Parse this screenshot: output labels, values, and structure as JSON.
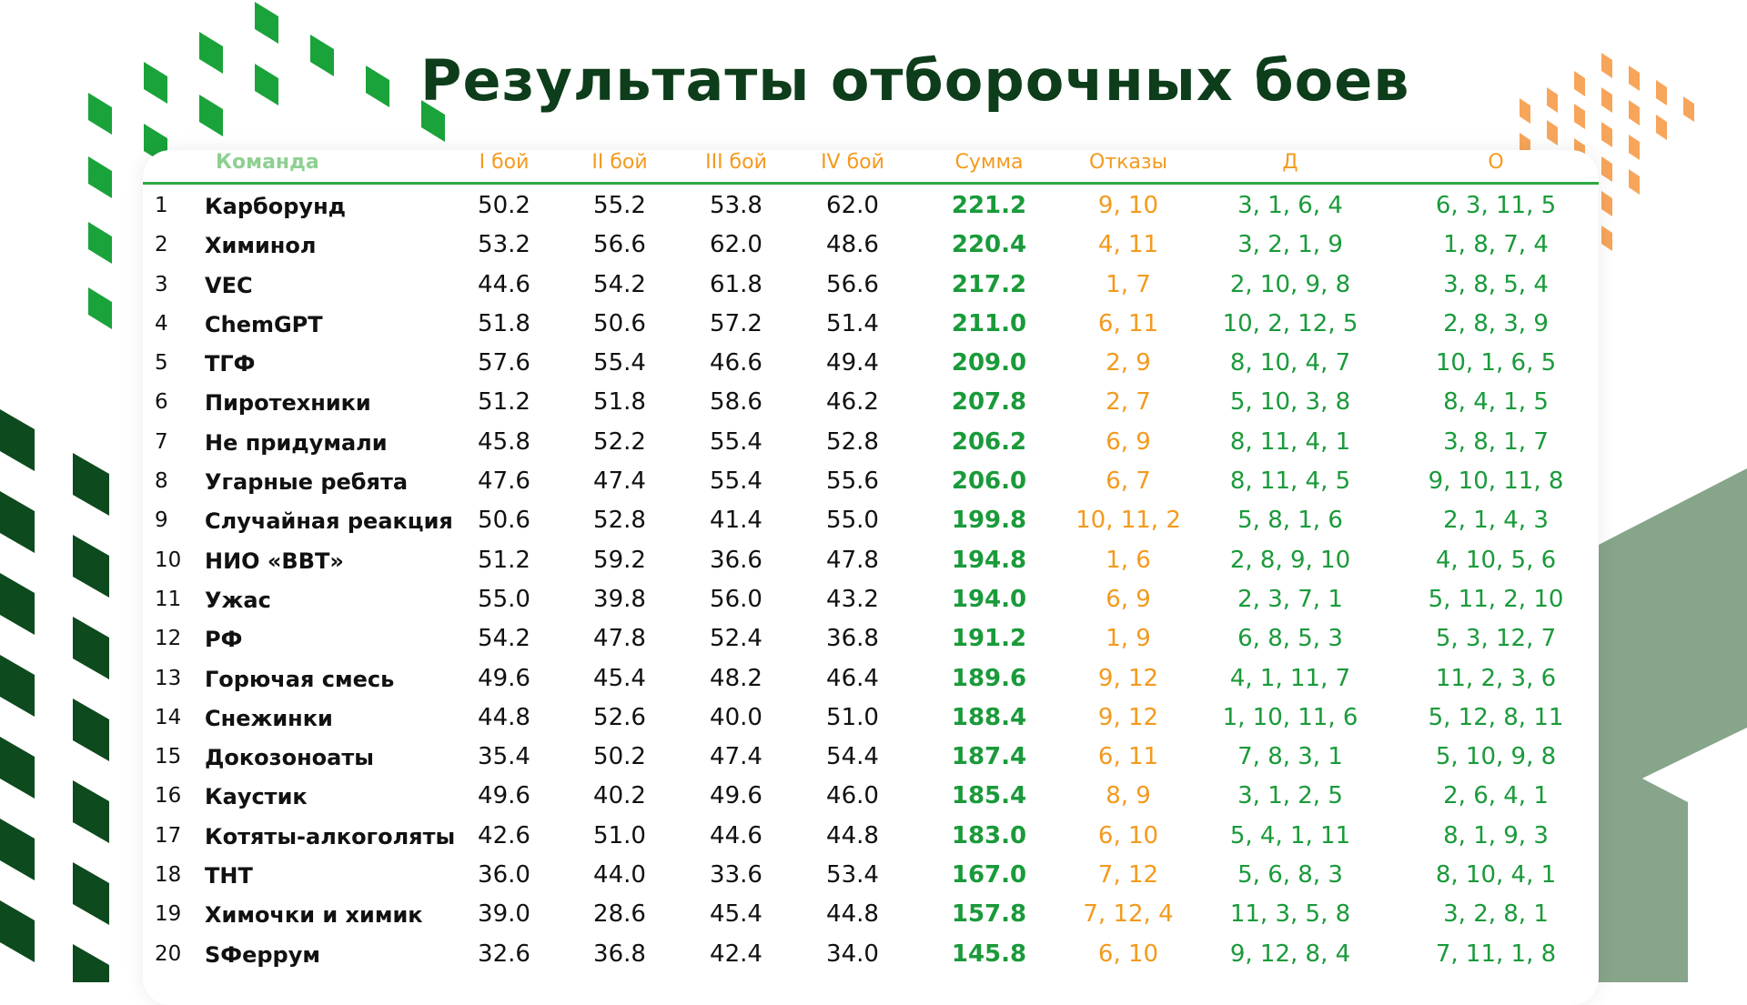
{
  "title": "Результаты отборочных боев",
  "colors": {
    "green_dark": "#0d4a1d",
    "green": "#1a9a3a",
    "orange": "#f39a1e",
    "hex_gray": "#8aa88c"
  },
  "table": {
    "headers": [
      "Команда",
      "I бой",
      "II бой",
      "III бой",
      "IV бой",
      "Сумма",
      "Отказы",
      "Д",
      "О"
    ],
    "rows": [
      {
        "num": "1",
        "team": "Карборунд",
        "b1": "50.2",
        "b2": "55.2",
        "b3": "53.8",
        "b4": "62.0",
        "sum": "221.2",
        "ref": "9, 10",
        "d": "3, 1, 6, 4",
        "o": "6, 3, 11, 5"
      },
      {
        "num": "2",
        "team": "Химинол",
        "b1": "53.2",
        "b2": "56.6",
        "b3": "62.0",
        "b4": "48.6",
        "sum": "220.4",
        "ref": "4, 11",
        "d": "3, 2, 1, 9",
        "o": "1, 8, 7, 4"
      },
      {
        "num": "3",
        "team": "VEC",
        "b1": "44.6",
        "b2": "54.2",
        "b3": "61.8",
        "b4": "56.6",
        "sum": "217.2",
        "ref": "1, 7",
        "d": "2, 10, 9, 8",
        "o": "3, 8, 5, 4"
      },
      {
        "num": "4",
        "team": "ChemGPT",
        "b1": "51.8",
        "b2": "50.6",
        "b3": "57.2",
        "b4": "51.4",
        "sum": "211.0",
        "ref": "6, 11",
        "d": "10, 2, 12, 5",
        "o": "2, 8, 3, 9"
      },
      {
        "num": "5",
        "team": "ТГФ",
        "b1": "57.6",
        "b2": "55.4",
        "b3": "46.6",
        "b4": "49.4",
        "sum": "209.0",
        "ref": "2, 9",
        "d": "8, 10, 4, 7",
        "o": "10, 1, 6, 5"
      },
      {
        "num": "6",
        "team": "Пиротехники",
        "b1": "51.2",
        "b2": "51.8",
        "b3": "58.6",
        "b4": "46.2",
        "sum": "207.8",
        "ref": "2, 7",
        "d": "5, 10, 3, 8",
        "o": "8, 4, 1, 5"
      },
      {
        "num": "7",
        "team": "Не придумали",
        "b1": "45.8",
        "b2": "52.2",
        "b3": "55.4",
        "b4": "52.8",
        "sum": "206.2",
        "ref": "6, 9",
        "d": "8, 11, 4, 1",
        "o": "3, 8, 1, 7"
      },
      {
        "num": "8",
        "team": "Угарные ребята",
        "b1": "47.6",
        "b2": "47.4",
        "b3": "55.4",
        "b4": "55.6",
        "sum": "206.0",
        "ref": "6, 7",
        "d": "8, 11, 4, 5",
        "o": "9, 10, 11, 8"
      },
      {
        "num": "9",
        "team": "Случайная реакция",
        "b1": "50.6",
        "b2": "52.8",
        "b3": "41.4",
        "b4": "55.0",
        "sum": "199.8",
        "ref": "10, 11, 2",
        "d": "5, 8, 1, 6",
        "o": "2, 1, 4, 3"
      },
      {
        "num": "10",
        "team": "НИО «ВВТ»",
        "b1": "51.2",
        "b2": "59.2",
        "b3": "36.6",
        "b4": "47.8",
        "sum": "194.8",
        "ref": "1, 6",
        "d": "2, 8, 9, 10",
        "o": "4, 10, 5, 6"
      },
      {
        "num": "11",
        "team": "Ужас",
        "b1": "55.0",
        "b2": "39.8",
        "b3": "56.0",
        "b4": "43.2",
        "sum": "194.0",
        "ref": "6, 9",
        "d": "2, 3, 7, 1",
        "o": "5, 11, 2, 10"
      },
      {
        "num": "12",
        "team": "РФ",
        "b1": "54.2",
        "b2": "47.8",
        "b3": "52.4",
        "b4": "36.8",
        "sum": "191.2",
        "ref": "1, 9",
        "d": "6, 8, 5, 3",
        "o": "5, 3, 12, 7"
      },
      {
        "num": "13",
        "team": "Горючая смесь",
        "b1": "49.6",
        "b2": "45.4",
        "b3": "48.2",
        "b4": "46.4",
        "sum": "189.6",
        "ref": "9, 12",
        "d": "4, 1, 11, 7",
        "o": "11, 2, 3, 6"
      },
      {
        "num": "14",
        "team": "Снежинки",
        "b1": "44.8",
        "b2": "52.6",
        "b3": "40.0",
        "b4": "51.0",
        "sum": "188.4",
        "ref": "9, 12",
        "d": "1, 10, 11, 6",
        "o": "5, 12, 8, 11"
      },
      {
        "num": "15",
        "team": "Докозоноаты",
        "b1": "35.4",
        "b2": "50.2",
        "b3": "47.4",
        "b4": "54.4",
        "sum": "187.4",
        "ref": "6, 11",
        "d": "7, 8, 3, 1",
        "o": "5, 10, 9, 8"
      },
      {
        "num": "16",
        "team": "Каустик",
        "b1": "49.6",
        "b2": "40.2",
        "b3": "49.6",
        "b4": "46.0",
        "sum": "185.4",
        "ref": "8, 9",
        "d": "3, 1, 2, 5",
        "o": "2, 6, 4, 1"
      },
      {
        "num": "17",
        "team": "Котяты-алкоголяты",
        "b1": "42.6",
        "b2": "51.0",
        "b3": "44.6",
        "b4": "44.8",
        "sum": "183.0",
        "ref": "6, 10",
        "d": "5, 4, 1, 11",
        "o": "8, 1, 9, 3"
      },
      {
        "num": "18",
        "team": "ТНТ",
        "b1": "36.0",
        "b2": "44.0",
        "b3": "33.6",
        "b4": "53.4",
        "sum": "167.0",
        "ref": "7, 12",
        "d": "5, 6, 8, 3",
        "o": "8, 10, 4, 1"
      },
      {
        "num": "19",
        "team": "Химочки и химик",
        "b1": "39.0",
        "b2": "28.6",
        "b3": "45.4",
        "b4": "44.8",
        "sum": "157.8",
        "ref": "7, 12, 4",
        "d": "11, 3, 5, 8",
        "o": "3, 2, 8, 1"
      },
      {
        "num": "20",
        "team": "SФеррум",
        "b1": "32.6",
        "b2": "36.8",
        "b3": "42.4",
        "b4": "34.0",
        "sum": "145.8",
        "ref": "6, 10",
        "d": "9, 12, 8, 4",
        "o": "7, 11, 1, 8"
      }
    ]
  }
}
